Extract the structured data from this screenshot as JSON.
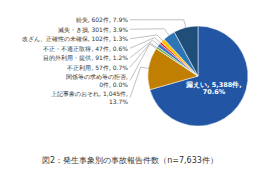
{
  "chart_data": {
    "type": "pie",
    "title": "図2：発生事象別の事故報告件数（n=7,633件）",
    "values": [
      5388,
      1045,
      0.1,
      57,
      91,
      47,
      102,
      301,
      602
    ],
    "value_labels": [
      "漏えい, 5,388件,\n70.6%",
      "上記事象のおそれ, 1,045件,\n13.7%",
      "関係等の求め等の拒否,\n0件, 0.0%",
      "不正利用, 57件, 0.7%",
      "目的外利用・提供, 91件, 1.2%",
      "不正・不適正取得, 47件, 0.6%",
      "改ざん、正確性の未確保, 102件, 1.3%",
      "滅失・き損, 301件, 3.9%",
      "紛失, 602件, 7.9%"
    ],
    "colors": [
      "#2255a4",
      "#c07f00",
      "#a9d18e",
      "#70ad47",
      "#4472c4",
      "#ff0000",
      "#ffc000",
      "#2e75b6",
      "#1f4e79"
    ]
  }
}
